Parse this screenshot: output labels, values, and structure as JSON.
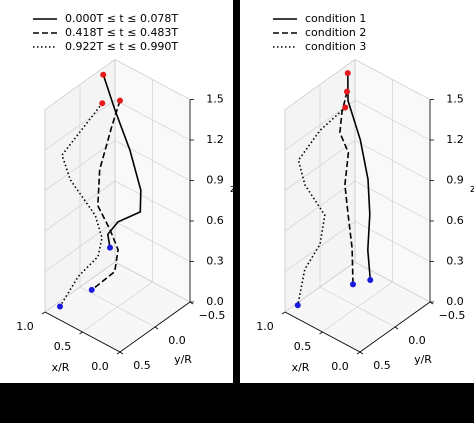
{
  "chart_data": [
    {
      "type": "line3d",
      "xlabel": "x/R",
      "ylabel": "y/R",
      "zlabel": "z",
      "xlim": [
        0,
        1
      ],
      "ylim": [
        -0.5,
        0.5
      ],
      "zlim": [
        0,
        1.5
      ],
      "xticks": [
        {
          "value": 0,
          "label": "0.0"
        },
        0.5,
        {
          "value": 1,
          "label": "1.0"
        }
      ],
      "yticks": [
        {
          "value": -0.5,
          "label": "−0.5"
        },
        {
          "value": 0,
          "label": "0.0"
        },
        0.5
      ],
      "zticks": [
        {
          "value": 0,
          "label": "0.0"
        },
        0.3,
        0.6,
        0.9,
        1.2,
        1.5
      ],
      "grid": true,
      "legend": "upper left",
      "start_color": "#e8191a",
      "end_color": "#1a1adf",
      "series": [
        {
          "name": "0.000T ≤ t ≤ 0.078T",
          "color": "#000000",
          "dash": "solid",
          "x": [
            0.97,
            0.77,
            0.52,
            0.33,
            0.29,
            0.54,
            0.63,
            0.6
          ],
          "y": [
            -0.3,
            -0.25,
            -0.2,
            -0.15,
            -0.1,
            -0.05,
            0,
            0
          ],
          "z": [
            1.47,
            1.29,
            1.08,
            0.86,
            0.73,
            0.6,
            0.5,
            0.41
          ]
        },
        {
          "name": "0.418T ≤ t ≤ 0.483T",
          "color": "#000000",
          "dash": "dashed",
          "x": [
            0.84,
            0.88,
            0.98,
            0.94,
            0.7,
            0.53,
            0.51,
            0.75
          ],
          "y": [
            -0.4,
            -0.33,
            -0.26,
            -0.19,
            -0.11,
            -0.04,
            0.03,
            0.1
          ],
          "z": [
            1.28,
            1.11,
            0.78,
            0.55,
            0.47,
            0.4,
            0.27,
            0.09
          ]
        },
        {
          "name": "0.922T ≤ t ≤ 0.990T",
          "color": "#000000",
          "dash": "dotted",
          "x": [
            0.89,
            0.93,
            0.96,
            0.85,
            0.61,
            0.52,
            0.48,
            0.65,
            0.8
          ],
          "y": [
            -0.2,
            0,
            0.3,
            0.3,
            0.2,
            0.2,
            0.3,
            0.4,
            0.5
          ],
          "z": [
            1.32,
            1.22,
            1.1,
            0.95,
            0.72,
            0.58,
            0.49,
            0.33,
            0.1
          ]
        }
      ]
    },
    {
      "type": "line3d",
      "xlabel": "x/R",
      "ylabel": "y/R",
      "zlabel": "z",
      "xlim": [
        0,
        1
      ],
      "ylim": [
        -0.5,
        0.5
      ],
      "zlim": [
        0,
        1.5
      ],
      "xticks": [
        {
          "value": 0,
          "label": "0.0"
        },
        0.5,
        {
          "value": 1,
          "label": "1.0"
        }
      ],
      "yticks": [
        {
          "value": -0.5,
          "label": "−0.5"
        },
        {
          "value": 0,
          "label": "0.0"
        },
        0.5
      ],
      "zticks": [
        {
          "value": 0,
          "label": "0.0"
        },
        0.3,
        0.6,
        0.9,
        1.2,
        1.5
      ],
      "grid": true,
      "legend": "upper left",
      "start_color": "#e8191a",
      "end_color": "#1a1adf",
      "series": [
        {
          "name": "condition 1",
          "color": "#000000",
          "dash": "solid",
          "x": [
            0.91,
            0.86,
            0.65,
            0.5,
            0.43,
            0.41,
            0.33
          ],
          "y": [
            -0.3,
            -0.25,
            -0.2,
            -0.15,
            -0.1,
            -0.05,
            0
          ],
          "z": [
            1.5,
            1.33,
            1.12,
            0.89,
            0.67,
            0.43,
            0.25
          ]
        },
        {
          "name": "condition 2",
          "color": "#000000",
          "dash": "dashed",
          "x": [
            0.92,
            0.95,
            0.94,
            0.79,
            0.79,
            0.71,
            0.61,
            0.56
          ],
          "y": [
            -0.3,
            -0.26,
            -0.22,
            -0.18,
            -0.13,
            -0.09,
            -0.04,
            0
          ],
          "z": [
            1.36,
            1.21,
            1.08,
            0.99,
            0.77,
            0.59,
            0.39,
            0.15
          ]
        },
        {
          "name": "condition 3",
          "color": "#000000",
          "dash": "dotted",
          "x": [
            0.85,
            1.0,
            0.99,
            0.92,
            0.75,
            0.72,
            0.83,
            0.83
          ],
          "y": [
            -0.2,
            0,
            0.32,
            0.3,
            0.2,
            0.3,
            0.4,
            0.5
          ],
          "z": [
            1.3,
            1.16,
            1.06,
            0.89,
            0.68,
            0.51,
            0.33,
            0.1
          ]
        }
      ]
    }
  ]
}
